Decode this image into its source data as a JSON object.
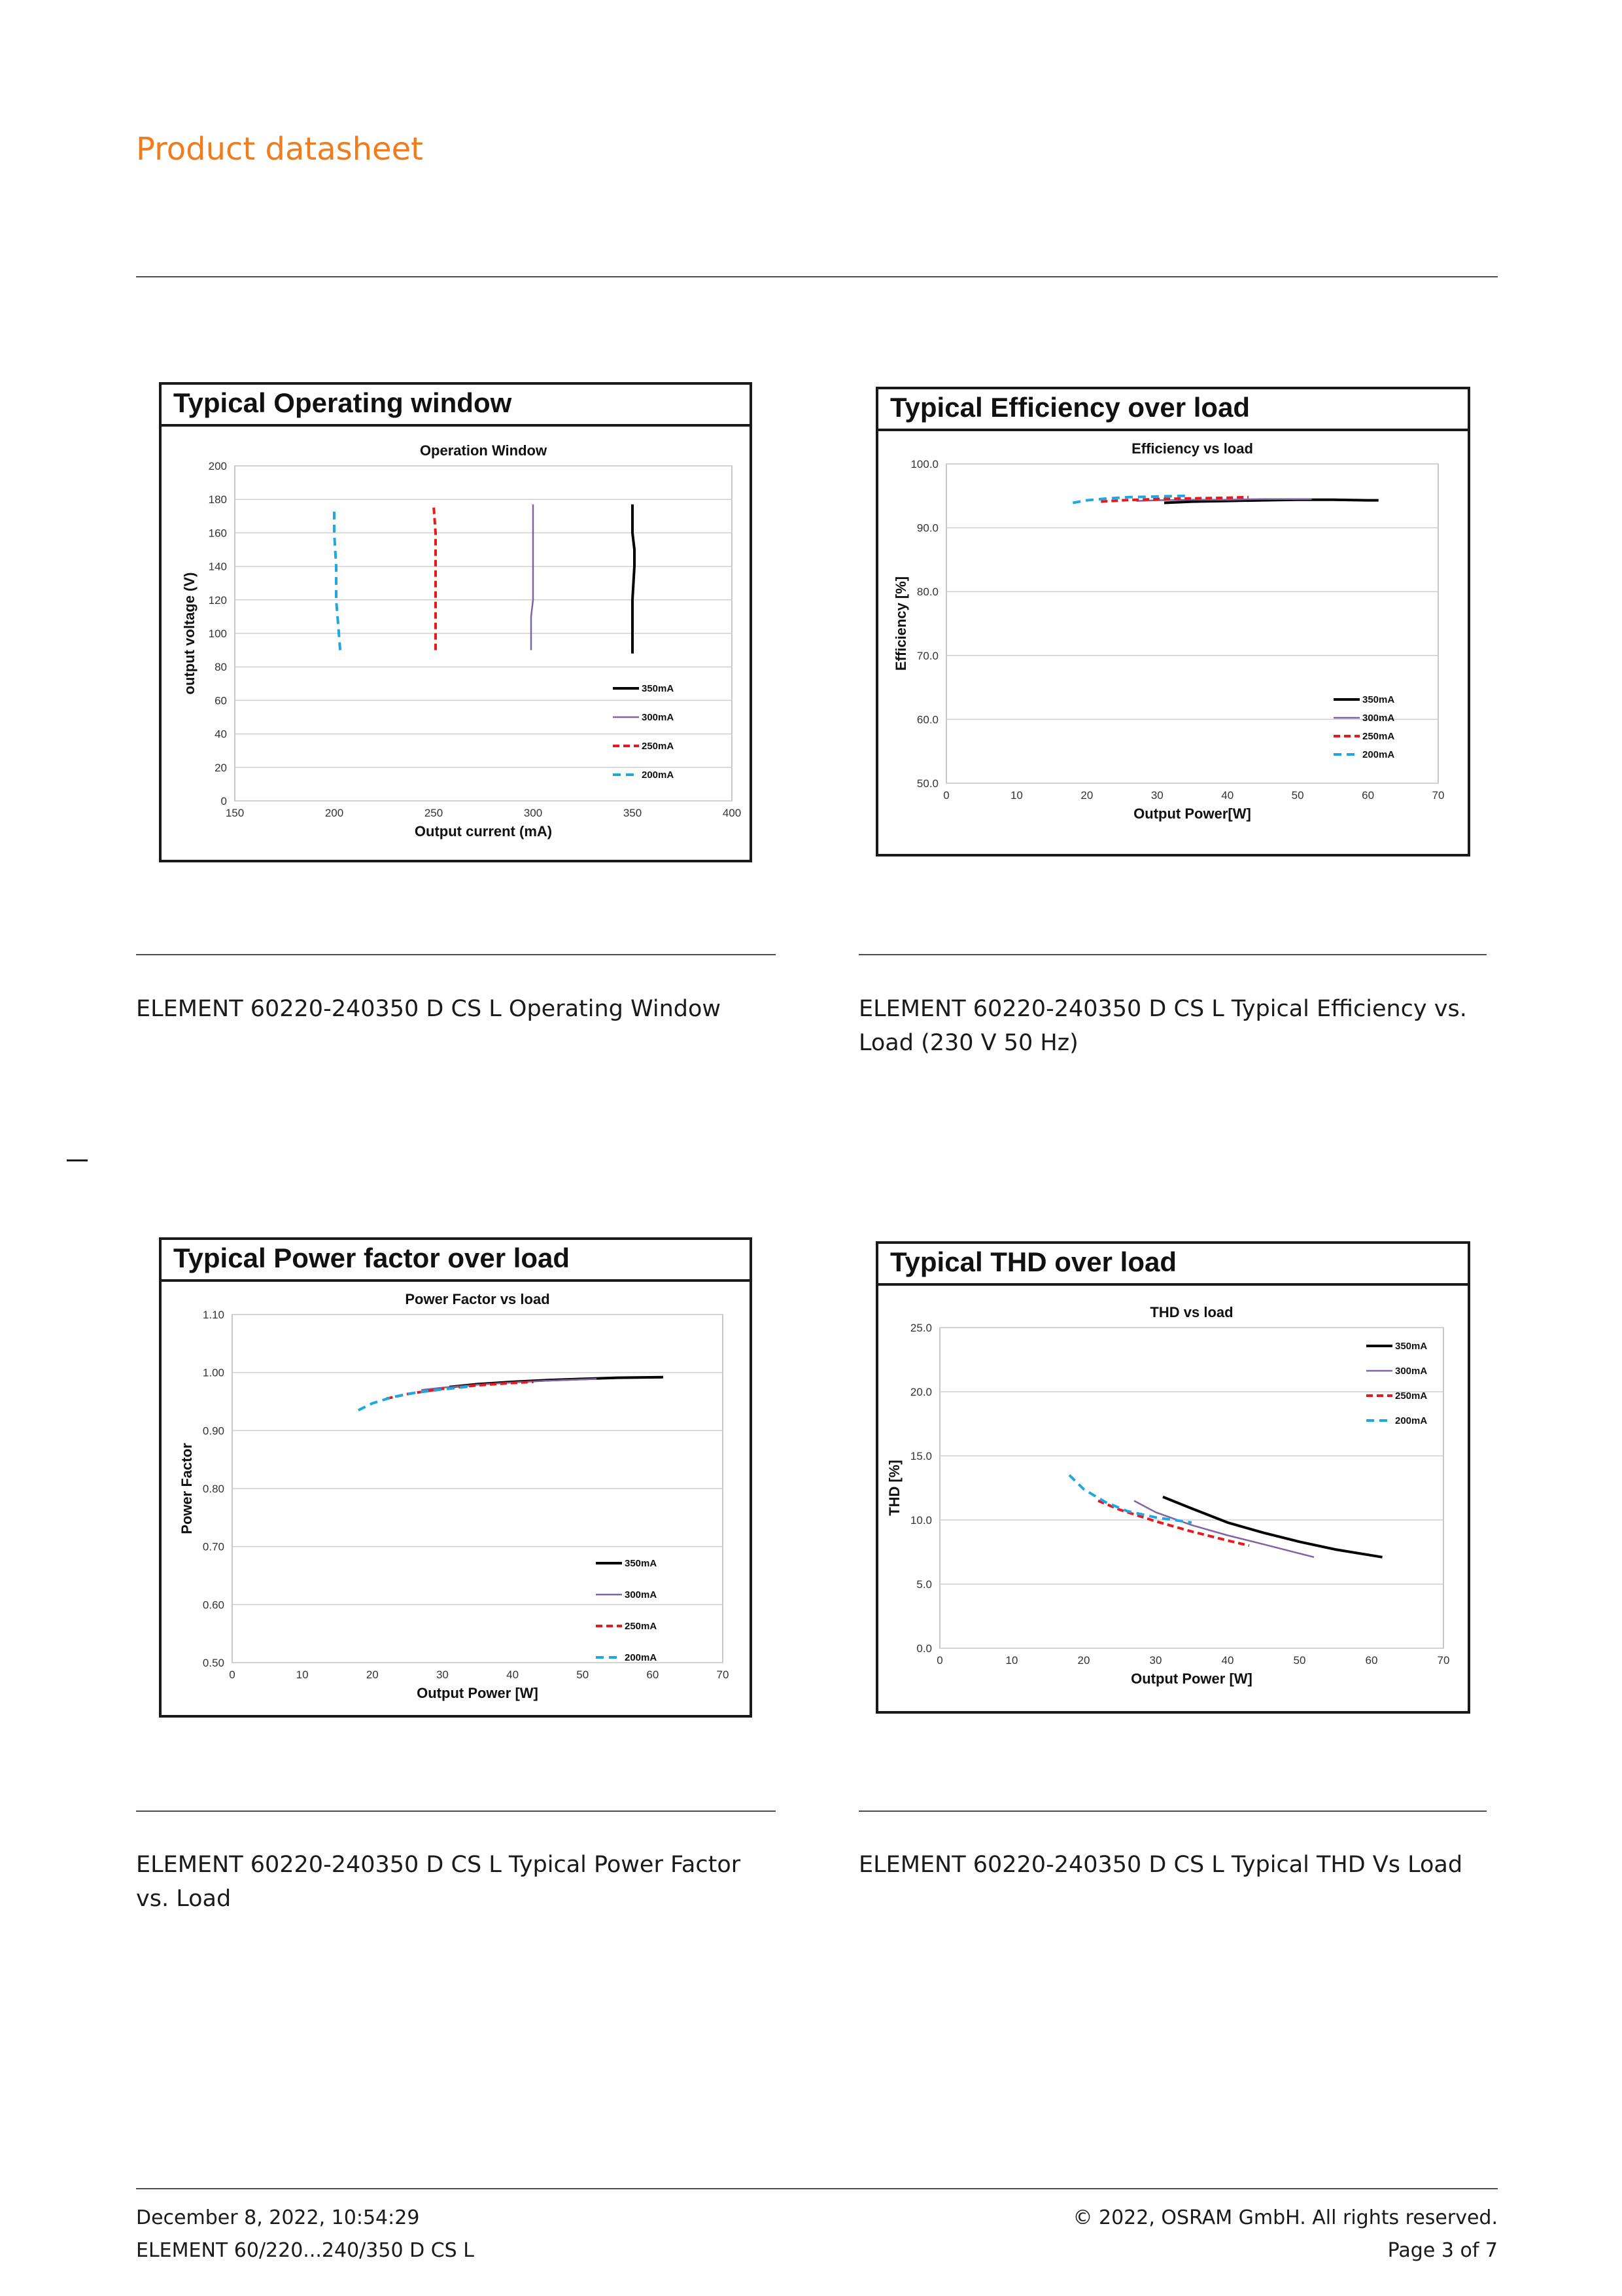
{
  "header": {
    "title": "Product datasheet"
  },
  "charts": {
    "operating": {
      "panel_title": "Typical Operating window",
      "caption": "ELEMENT 60220-240350 D CS L Operating Window"
    },
    "efficiency": {
      "panel_title": "Typical Efficiency over load",
      "caption": "ELEMENT 60220-240350 D CS L Typical Efficiency vs. Load (230 V  50 Hz)"
    },
    "powerfactor": {
      "panel_title": "Typical Power factor over load",
      "caption": "ELEMENT 60220-240350 D CS L Typical Power Factor vs. Load"
    },
    "thd": {
      "panel_title": "Typical THD over load",
      "caption": "ELEMENT 60220-240350 D CS L Typical THD Vs Load"
    }
  },
  "footer": {
    "timestamp": "December 8, 2022, 10:54:29",
    "product": "ELEMENT 60/220...240/350 D CS L",
    "copyright": "© 2022, OSRAM GmbH. All rights reserved.",
    "page": "Page 3 of 7"
  },
  "series_styles": [
    {
      "name": "350mA",
      "color": "#000000",
      "dash": "none",
      "width": 4
    },
    {
      "name": "300mA",
      "color": "#8064a2",
      "dash": "none",
      "width": 2.5
    },
    {
      "name": "250mA",
      "color": "#e8191c",
      "dash": "10,6",
      "width": 4
    },
    {
      "name": "200mA",
      "color": "#1fa8e0",
      "dash": "12,8",
      "width": 4
    }
  ],
  "chart_data": [
    {
      "type": "line",
      "title": "Operation Window",
      "xlabel": "Output current (mA)",
      "ylabel": "output voltage (V)",
      "xlim": [
        150,
        400
      ],
      "ylim": [
        0,
        200
      ],
      "xticks": [
        150,
        200,
        250,
        300,
        350,
        400
      ],
      "yticks": [
        0,
        20,
        40,
        60,
        80,
        100,
        120,
        140,
        160,
        180,
        200
      ],
      "xtick_format": 0,
      "ytick_format": 0,
      "grid": true,
      "legend": "bottom-right",
      "series": [
        {
          "name": "350mA",
          "x": [
            350,
            350,
            351,
            351,
            350,
            350
          ],
          "y": [
            88,
            120,
            140,
            150,
            160,
            177
          ]
        },
        {
          "name": "300mA",
          "x": [
            299,
            299,
            300,
            300,
            300,
            300
          ],
          "y": [
            90,
            110,
            120,
            140,
            160,
            177
          ]
        },
        {
          "name": "250mA",
          "x": [
            251,
            251,
            251,
            251,
            250
          ],
          "y": [
            90,
            120,
            140,
            160,
            176
          ]
        },
        {
          "name": "200mA",
          "x": [
            203,
            202,
            201,
            201,
            200,
            200
          ],
          "y": [
            90,
            105,
            120,
            140,
            160,
            175
          ]
        }
      ]
    },
    {
      "type": "line",
      "title": "Efficiency vs load",
      "xlabel": "Output Power[W]",
      "ylabel": "Efficiency [%]",
      "xlim": [
        0,
        70
      ],
      "ylim": [
        50,
        100
      ],
      "xticks": [
        0,
        10,
        20,
        30,
        40,
        50,
        60,
        70
      ],
      "yticks": [
        50,
        60,
        70,
        80,
        90,
        100
      ],
      "xtick_format": 0,
      "ytick_format": 1,
      "grid": true,
      "legend": "bottom-right",
      "series": [
        {
          "name": "350mA",
          "x": [
            31,
            35,
            40,
            45,
            50,
            55,
            60,
            61.5
          ],
          "y": [
            93.9,
            94.1,
            94.2,
            94.3,
            94.4,
            94.4,
            94.3,
            94.3
          ]
        },
        {
          "name": "300mA",
          "x": [
            27,
            30,
            35,
            40,
            45,
            50,
            52
          ],
          "y": [
            94.2,
            94.3,
            94.4,
            94.4,
            94.5,
            94.5,
            94.5
          ]
        },
        {
          "name": "250mA",
          "x": [
            22,
            25,
            30,
            35,
            40,
            43
          ],
          "y": [
            94.1,
            94.3,
            94.5,
            94.6,
            94.7,
            94.8
          ]
        },
        {
          "name": "200mA",
          "x": [
            18,
            20,
            23,
            26,
            30,
            34
          ],
          "y": [
            93.9,
            94.3,
            94.6,
            94.8,
            94.9,
            95.0
          ]
        }
      ]
    },
    {
      "type": "line",
      "title": "Power Factor vs load",
      "xlabel": "Output Power [W]",
      "ylabel": "Power Factor",
      "xlim": [
        0,
        70
      ],
      "ylim": [
        0.5,
        1.1
      ],
      "xticks": [
        0,
        10,
        20,
        30,
        40,
        50,
        60,
        70
      ],
      "yticks": [
        0.5,
        0.6,
        0.7,
        0.8,
        0.9,
        1.0,
        1.1
      ],
      "xtick_format": 0,
      "ytick_format": 2,
      "grid": true,
      "legend": "bottom-right",
      "series": [
        {
          "name": "350mA",
          "x": [
            31,
            35,
            40,
            45,
            50,
            55,
            61.5
          ],
          "y": [
            0.975,
            0.98,
            0.984,
            0.987,
            0.989,
            0.991,
            0.992
          ]
        },
        {
          "name": "300mA",
          "x": [
            27,
            30,
            35,
            40,
            45,
            52
          ],
          "y": [
            0.97,
            0.974,
            0.979,
            0.983,
            0.986,
            0.989
          ]
        },
        {
          "name": "250mA",
          "x": [
            22,
            25,
            30,
            35,
            40,
            43
          ],
          "y": [
            0.955,
            0.963,
            0.972,
            0.978,
            0.982,
            0.984
          ]
        },
        {
          "name": "200mA",
          "x": [
            18,
            20,
            23,
            26,
            30,
            34
          ],
          "y": [
            0.935,
            0.947,
            0.958,
            0.965,
            0.971,
            0.976
          ]
        }
      ]
    },
    {
      "type": "line",
      "title": "THD  vs  load",
      "xlabel": "Output Power [W]",
      "ylabel": "THD [%]",
      "xlim": [
        0,
        70
      ],
      "ylim": [
        0,
        25
      ],
      "xticks": [
        0,
        10,
        20,
        30,
        40,
        50,
        60,
        70
      ],
      "yticks": [
        0,
        5,
        10,
        15,
        20,
        25
      ],
      "xtick_format": 0,
      "ytick_format": 1,
      "grid": true,
      "legend": "top-right",
      "series": [
        {
          "name": "350mA",
          "x": [
            31,
            35,
            40,
            45,
            50,
            55,
            61.5
          ],
          "y": [
            11.8,
            10.9,
            9.8,
            9.0,
            8.3,
            7.7,
            7.1
          ]
        },
        {
          "name": "300mA",
          "x": [
            27,
            30,
            35,
            40,
            45,
            52
          ],
          "y": [
            11.5,
            10.6,
            9.6,
            8.8,
            8.1,
            7.1
          ]
        },
        {
          "name": "250mA",
          "x": [
            22,
            25,
            30,
            35,
            40,
            43
          ],
          "y": [
            11.5,
            10.8,
            9.9,
            9.1,
            8.4,
            8.0
          ]
        },
        {
          "name": "200mA",
          "x": [
            18,
            20,
            23,
            26,
            30,
            35
          ],
          "y": [
            13.5,
            12.4,
            11.4,
            10.7,
            10.2,
            9.8
          ]
        }
      ]
    }
  ]
}
